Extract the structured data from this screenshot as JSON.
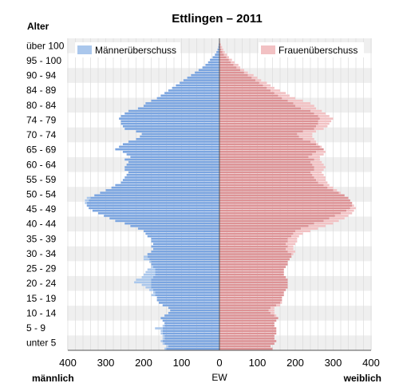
{
  "chart_data": {
    "type": "bar",
    "orientation": "population-pyramid",
    "title": "Ettlingen – 2011",
    "y_axis_title": "Alter",
    "x_axis_title": "EW",
    "left_side_label": "männlich",
    "right_side_label": "weiblich",
    "xlim": [
      -400,
      400
    ],
    "x_ticks": [
      400,
      300,
      200,
      100,
      0,
      100,
      200,
      300,
      400
    ],
    "grid": true,
    "age_groups": [
      "unter 5",
      "5 - 9",
      "10 - 14",
      "15 - 19",
      "20 - 24",
      "25 - 29",
      "30 - 34",
      "35 - 39",
      "40 - 44",
      "45 - 49",
      "50 - 54",
      "55 - 59",
      "60 - 64",
      "65 - 69",
      "70 - 74",
      "74 - 79",
      "80 - 84",
      "84 - 89",
      "90 - 94",
      "95 - 100",
      "über 100"
    ],
    "legend": {
      "position": "top",
      "entries": [
        {
          "label": "Männerüberschuss",
          "color": "#aac7ec"
        },
        {
          "label": "Frauenüberschuss",
          "color": "#f2c1c3"
        }
      ]
    },
    "colors": {
      "male": "#7ba5e0",
      "female": "#dd9396",
      "male_surplus": "#aac7ec",
      "female_surplus": "#f2c1c3",
      "band": "#efefef"
    },
    "series": [
      {
        "name": "männlich",
        "values": [
          145,
          140,
          150,
          155,
          150,
          150,
          155,
          155,
          170,
          150,
          145,
          150,
          155,
          145,
          135,
          130,
          135,
          150,
          160,
          165,
          165,
          180,
          175,
          185,
          195,
          205,
          225,
          220,
          205,
          200,
          195,
          190,
          180,
          180,
          185,
          200,
          200,
          190,
          180,
          175,
          180,
          175,
          180,
          180,
          190,
          195,
          200,
          215,
          235,
          250,
          275,
          290,
          305,
          320,
          335,
          345,
          350,
          355,
          355,
          350,
          330,
          315,
          300,
          285,
          275,
          260,
          255,
          250,
          245,
          240,
          250,
          250,
          245,
          240,
          250,
          235,
          245,
          255,
          275,
          265,
          255,
          240,
          220,
          210,
          205,
          220,
          250,
          255,
          260,
          260,
          265,
          260,
          250,
          240,
          215,
          200,
          195,
          180,
          165,
          155,
          145,
          135,
          125,
          115,
          105,
          95,
          85,
          75,
          65,
          55,
          45,
          37,
          30,
          25,
          18,
          12,
          8,
          5,
          3,
          2,
          1,
          0
        ]
      },
      {
        "name": "weiblich",
        "values": [
          140,
          135,
          145,
          150,
          145,
          145,
          150,
          150,
          150,
          145,
          145,
          150,
          155,
          150,
          145,
          145,
          145,
          160,
          165,
          165,
          165,
          170,
          170,
          175,
          180,
          180,
          180,
          180,
          175,
          170,
          170,
          170,
          175,
          180,
          180,
          185,
          190,
          195,
          200,
          195,
          195,
          200,
          205,
          205,
          210,
          220,
          240,
          260,
          280,
          300,
          315,
          330,
          340,
          350,
          355,
          360,
          355,
          350,
          345,
          340,
          330,
          320,
          310,
          300,
          290,
          285,
          280,
          280,
          275,
          270,
          275,
          280,
          275,
          270,
          265,
          265,
          275,
          280,
          275,
          270,
          260,
          255,
          250,
          245,
          245,
          255,
          275,
          285,
          290,
          295,
          300,
          290,
          280,
          270,
          255,
          250,
          240,
          220,
          200,
          185,
          175,
          160,
          145,
          135,
          125,
          110,
          100,
          90,
          75,
          65,
          55,
          50,
          40,
          33,
          25,
          20,
          14,
          10,
          7,
          4,
          2,
          1
        ]
      }
    ]
  }
}
